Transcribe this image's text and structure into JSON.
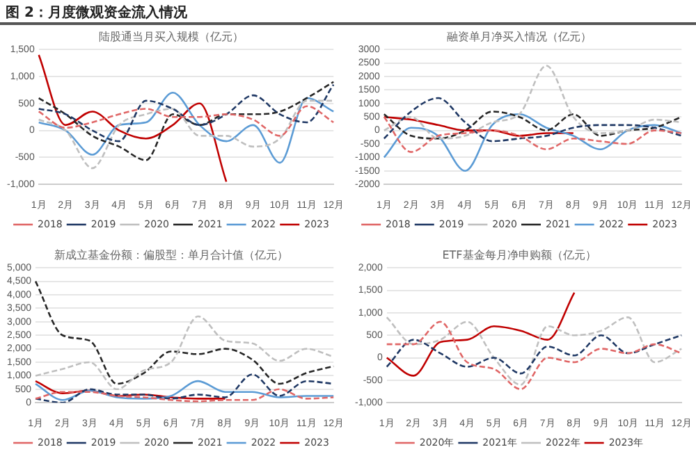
{
  "chart_data": [
    {
      "type": "line",
      "title": "陆股通当月买入规模（亿元）",
      "annotations": [
        "图 2：月度微观资金流入情况"
      ],
      "categories": [
        "1月",
        "2月",
        "3月",
        "4月",
        "5月",
        "6月",
        "7月",
        "8月",
        "9月",
        "10月",
        "11月",
        "12月"
      ],
      "series": [
        {
          "name": "2018",
          "color": "#e06666",
          "line_style": "dashed",
          "values": [
            350,
            50,
            150,
            300,
            400,
            250,
            250,
            300,
            200,
            -100,
            450,
            150
          ]
        },
        {
          "name": "2019",
          "color": "#1f3864",
          "line_style": "dashed",
          "values": [
            400,
            300,
            0,
            -200,
            550,
            400,
            100,
            300,
            650,
            300,
            150,
            850
          ]
        },
        {
          "name": "2020",
          "color": "#bfbfbf",
          "line_style": "dashed",
          "values": [
            200,
            0,
            -700,
            100,
            300,
            400,
            -100,
            -100,
            -300,
            -150,
            550,
            550
          ]
        },
        {
          "name": "2021",
          "color": "#262626",
          "line_style": "dashed",
          "values": [
            600,
            300,
            -100,
            -300,
            -550,
            300,
            100,
            300,
            300,
            350,
            600,
            900
          ]
        },
        {
          "name": "2022",
          "color": "#5b9bd5",
          "line_style": "solid",
          "values": [
            150,
            0,
            -450,
            100,
            150,
            700,
            100,
            -200,
            100,
            -600,
            600,
            350
          ]
        },
        {
          "name": "2023",
          "color": "#c00000",
          "line_style": "solid",
          "values": [
            1400,
            100,
            350,
            0,
            -150,
            100,
            500,
            -950,
            null,
            null,
            null,
            null
          ]
        }
      ],
      "ylim": [
        -1000,
        1500
      ],
      "yticks": [
        {
          "value": -1000,
          "label": "-1,000"
        },
        -500,
        0,
        500,
        {
          "value": 1000,
          "label": "1,000"
        },
        {
          "value": 1500,
          "label": "1,500"
        }
      ],
      "grid": "y",
      "legend": "bottom",
      "marker": "none"
    },
    {
      "type": "line",
      "title": "融资单月净买入情况（亿元）",
      "categories": [
        "1月",
        "2月",
        "3月",
        "4月",
        "5月",
        "6月",
        "7月",
        "8月",
        "9月",
        "10月",
        "11月",
        "12月"
      ],
      "series": [
        {
          "name": "2018",
          "color": "#e06666",
          "line_style": "dashed",
          "values": [
            500,
            -800,
            -200,
            -100,
            0,
            -200,
            -700,
            -300,
            -400,
            -500,
            0,
            -100
          ]
        },
        {
          "name": "2019",
          "color": "#1f3864",
          "line_style": "dashed",
          "values": [
            -300,
            700,
            1200,
            300,
            -400,
            -300,
            -200,
            100,
            200,
            200,
            100,
            -200
          ]
        },
        {
          "name": "2020",
          "color": "#bfbfbf",
          "line_style": "dashed",
          "values": [
            0,
            500,
            -300,
            -200,
            300,
            600,
            2400,
            500,
            -100,
            0,
            400,
            300
          ]
        },
        {
          "name": "2021",
          "color": "#262626",
          "line_style": "dashed",
          "values": [
            600,
            -200,
            -300,
            0,
            700,
            500,
            0,
            600,
            -200,
            0,
            100,
            500
          ]
        },
        {
          "name": "2022",
          "color": "#5b9bd5",
          "line_style": "solid",
          "values": [
            -1000,
            100,
            -200,
            -1500,
            200,
            600,
            100,
            -200,
            -700,
            0,
            200,
            -100
          ]
        },
        {
          "name": "2023",
          "color": "#c00000",
          "line_style": "solid",
          "values": [
            500,
            400,
            200,
            0,
            0,
            -200,
            -100,
            -100,
            null,
            null,
            null,
            null
          ]
        }
      ],
      "ylim": [
        -2000,
        3000
      ],
      "yticks": [
        -2000,
        -1500,
        -1000,
        -500,
        0,
        500,
        1000,
        1500,
        2000,
        2500,
        3000
      ],
      "grid": "y",
      "legend": "bottom",
      "marker": "none"
    },
    {
      "type": "line",
      "title": "新成立基金份额：偏股型：单月合计值（亿元）",
      "categories": [
        "1月",
        "2月",
        "3月",
        "4月",
        "5月",
        "6月",
        "7月",
        "8月",
        "9月",
        "10月",
        "11月",
        "12月"
      ],
      "series": [
        {
          "name": "2018",
          "color": "#e06666",
          "line_style": "dashed",
          "values": [
            150,
            400,
            400,
            250,
            200,
            100,
            50,
            100,
            100,
            500,
            150,
            200
          ]
        },
        {
          "name": "2019",
          "color": "#1f3864",
          "line_style": "dashed",
          "values": [
            150,
            0,
            500,
            300,
            300,
            150,
            300,
            200,
            1050,
            250,
            800,
            700
          ]
        },
        {
          "name": "2020",
          "color": "#bfbfbf",
          "line_style": "dashed",
          "values": [
            1000,
            1250,
            1500,
            500,
            1200,
            1500,
            3200,
            2300,
            2200,
            1550,
            2000,
            1700
          ]
        },
        {
          "name": "2021",
          "color": "#262626",
          "line_style": "dashed",
          "values": [
            4500,
            2500,
            2300,
            700,
            1100,
            1900,
            1800,
            2000,
            1600,
            700,
            1100,
            1350
          ]
        },
        {
          "name": "2022",
          "color": "#5b9bd5",
          "line_style": "solid",
          "values": [
            700,
            100,
            450,
            200,
            150,
            250,
            800,
            400,
            400,
            200,
            250,
            250
          ]
        },
        {
          "name": "2023",
          "color": "#c00000",
          "line_style": "solid",
          "values": [
            800,
            350,
            450,
            250,
            300,
            200,
            150,
            150,
            null,
            null,
            null,
            null
          ]
        }
      ],
      "ylim": [
        0,
        5000
      ],
      "yticks": [
        0,
        500,
        {
          "value": 1000,
          "label": "1,000"
        },
        {
          "value": 1500,
          "label": "1,500"
        },
        {
          "value": 2000,
          "label": "2,000"
        },
        {
          "value": 2500,
          "label": "2,500"
        },
        {
          "value": 3000,
          "label": "3,000"
        },
        {
          "value": 3500,
          "label": "3,500"
        },
        {
          "value": 4000,
          "label": "4,000"
        },
        {
          "value": 4500,
          "label": "4,500"
        },
        {
          "value": 5000,
          "label": "5,000"
        }
      ],
      "grid": "y",
      "legend": "bottom",
      "marker": "none"
    },
    {
      "type": "line",
      "title": "ETF基金每月净申购额（亿元）",
      "categories": [
        "1月",
        "2月",
        "3月",
        "4月",
        "5月",
        "6月",
        "7月",
        "8月",
        "9月",
        "10月",
        "11月",
        "12月"
      ],
      "series": [
        {
          "name": "2020年",
          "color": "#e06666",
          "line_style": "dashed",
          "values": [
            300,
            300,
            800,
            -100,
            -250,
            -700,
            0,
            -100,
            200,
            100,
            300,
            100
          ]
        },
        {
          "name": "2021年",
          "color": "#1f3864",
          "line_style": "dashed",
          "values": [
            -200,
            400,
            100,
            -200,
            0,
            -350,
            250,
            50,
            500,
            100,
            300,
            500
          ]
        },
        {
          "name": "2022年",
          "color": "#bfbfbf",
          "line_style": "dashed",
          "values": [
            900,
            300,
            400,
            800,
            0,
            -600,
            700,
            500,
            600,
            900,
            -100,
            200
          ]
        },
        {
          "name": "2023年",
          "color": "#c00000",
          "line_style": "solid",
          "values": [
            0,
            -400,
            350,
            400,
            700,
            600,
            400,
            1450,
            null,
            null,
            null,
            null
          ]
        }
      ],
      "ylim": [
        -1000,
        2000
      ],
      "yticks": [
        {
          "value": -1000,
          "label": "-1,000"
        },
        -500,
        0,
        500,
        {
          "value": 1000,
          "label": "1,000"
        },
        {
          "value": 1500,
          "label": "1,500"
        },
        {
          "value": 2000,
          "label": "2,000"
        }
      ],
      "grid": "y",
      "legend": "bottom",
      "marker": "none"
    }
  ]
}
